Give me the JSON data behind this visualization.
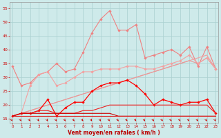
{
  "x": [
    0,
    1,
    2,
    3,
    4,
    5,
    6,
    7,
    8,
    9,
    10,
    11,
    12,
    13,
    14,
    15,
    16,
    17,
    18,
    19,
    20,
    21,
    22,
    23
  ],
  "series": [
    {
      "name": "rafales_top",
      "color": "#f08080",
      "linewidth": 0.8,
      "marker": "D",
      "markersize": 1.8,
      "values": [
        34,
        27,
        28,
        31,
        32,
        35,
        32,
        33,
        39,
        46,
        51,
        54,
        47,
        47,
        49,
        37,
        38,
        39,
        40,
        38,
        41,
        34,
        41,
        33
      ]
    },
    {
      "name": "trend_linear1",
      "color": "#f0a0a0",
      "linewidth": 0.8,
      "marker": null,
      "values": [
        16,
        17,
        18,
        19,
        20,
        21,
        22,
        23,
        24,
        25,
        26,
        27,
        28,
        29,
        30,
        31,
        32,
        33,
        34,
        35,
        36,
        37,
        38,
        33
      ]
    },
    {
      "name": "trend_linear2",
      "color": "#e89898",
      "linewidth": 0.8,
      "marker": null,
      "values": [
        16,
        17,
        18,
        19,
        20,
        21,
        22,
        23,
        24,
        25,
        26,
        27,
        28,
        29,
        30,
        31,
        32,
        33,
        34,
        35,
        36,
        35,
        37,
        33
      ]
    },
    {
      "name": "moyenne_marked",
      "color": "#f4a0a0",
      "linewidth": 0.8,
      "marker": "D",
      "markersize": 1.8,
      "values": [
        16,
        17,
        27,
        31,
        32,
        27,
        28,
        30,
        32,
        32,
        33,
        33,
        33,
        34,
        34,
        33,
        33,
        34,
        35,
        36,
        38,
        35,
        37,
        33
      ]
    },
    {
      "name": "wind_speed",
      "color": "#ff0000",
      "linewidth": 0.9,
      "marker": "D",
      "markersize": 1.8,
      "values": [
        16,
        17,
        17,
        18,
        22,
        16,
        19,
        21,
        21,
        25,
        27,
        28,
        28,
        29,
        27,
        24,
        20,
        22,
        21,
        20,
        21,
        21,
        22,
        17
      ]
    },
    {
      "name": "flat_rising",
      "color": "#ee2222",
      "linewidth": 0.8,
      "marker": null,
      "values": [
        16,
        17,
        17,
        18,
        18,
        17,
        17,
        17,
        18,
        18,
        19,
        20,
        20,
        20,
        20,
        20,
        20,
        20,
        20,
        20,
        20,
        20,
        20,
        17
      ]
    },
    {
      "name": "flat_low1",
      "color": "#cc0000",
      "linewidth": 0.8,
      "marker": null,
      "values": [
        16,
        17,
        17,
        17,
        17,
        17,
        17,
        17,
        17,
        17,
        17,
        17,
        16,
        16,
        16,
        16,
        16,
        16,
        16,
        16,
        16,
        16,
        16,
        16
      ]
    },
    {
      "name": "flat_low2",
      "color": "#dd1111",
      "linewidth": 0.8,
      "marker": null,
      "values": [
        16,
        16,
        16,
        16,
        16,
        16,
        16,
        16,
        16,
        16,
        16,
        16,
        16,
        16,
        16,
        16,
        16,
        16,
        16,
        16,
        16,
        16,
        16,
        16
      ]
    }
  ],
  "xlabel": "Vent moyen/en rafales ( km/h )",
  "xlim": [
    -0.3,
    23.3
  ],
  "ylim": [
    13.5,
    57
  ],
  "yticks": [
    15,
    20,
    25,
    30,
    35,
    40,
    45,
    50,
    55
  ],
  "xticks": [
    0,
    1,
    2,
    3,
    4,
    5,
    6,
    7,
    8,
    9,
    10,
    11,
    12,
    13,
    14,
    15,
    16,
    17,
    18,
    19,
    20,
    21,
    22,
    23
  ],
  "bg_color": "#ceeaea",
  "grid_color": "#aad0d0",
  "arrow_color": "#cc0000",
  "xlabel_color": "#bb0000",
  "tick_color": "#cc0000",
  "spine_color": "#999999"
}
